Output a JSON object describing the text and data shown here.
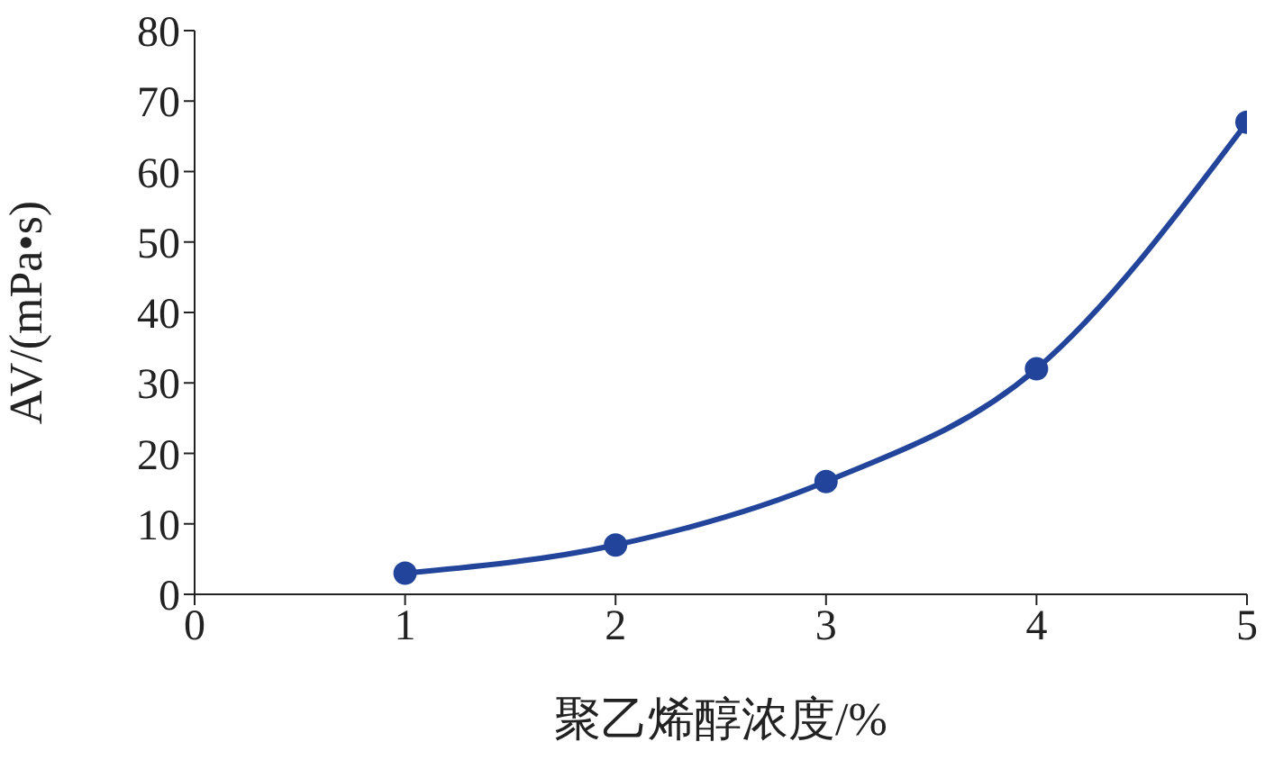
{
  "chart_data": {
    "type": "line",
    "xlabel": "聚乙烯醇浓度/%",
    "ylabel": "AV/(mPa•s)",
    "x": [
      1,
      2,
      3,
      4,
      5
    ],
    "series": [
      {
        "color": "#22459b",
        "values": [
          3,
          7,
          16,
          32,
          67
        ]
      }
    ],
    "xlim": [
      0,
      5
    ],
    "xticks": [
      0,
      1,
      2,
      3,
      4,
      5
    ],
    "ylim": [
      0,
      80
    ],
    "yticks": [
      0,
      10,
      20,
      30,
      40,
      50,
      60,
      70,
      80
    ],
    "grid": false,
    "marker": "circle",
    "line_style": "solid"
  }
}
